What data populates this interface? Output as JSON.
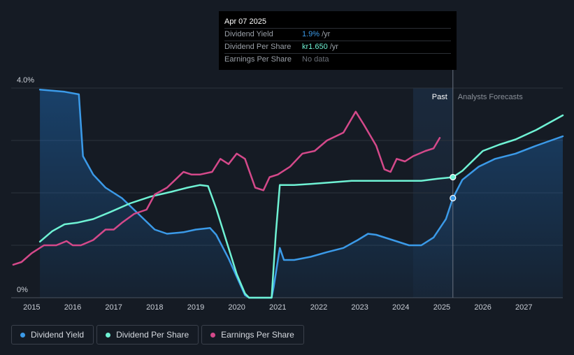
{
  "tooltip": {
    "date": "Apr 07 2025",
    "rows": [
      {
        "label": "Dividend Yield",
        "value": "1.9%",
        "unit": "/yr",
        "color": "#3b9ae8"
      },
      {
        "label": "Dividend Per Share",
        "value": "kr1.650",
        "unit": "/yr",
        "color": "#6ff2d4"
      },
      {
        "label": "Earnings Per Share",
        "value": "No data",
        "unit": "",
        "color": "#6b7078"
      }
    ]
  },
  "regions": {
    "past_label": "Past",
    "forecast_label": "Analysts Forecasts"
  },
  "legend": [
    {
      "label": "Dividend Yield",
      "color": "#3b9ae8"
    },
    {
      "label": "Dividend Per Share",
      "color": "#6ff2d4"
    },
    {
      "label": "Earnings Per Share",
      "color": "#d4498a"
    }
  ],
  "chart_data": {
    "type": "line",
    "y_tick_labels": [
      "4.0%",
      "0%"
    ],
    "ylim": [
      0,
      4.0
    ],
    "xlim": [
      2014.5,
      2027.95
    ],
    "x_ticks": [
      2015,
      2016,
      2017,
      2018,
      2019,
      2020,
      2021,
      2022,
      2023,
      2024,
      2025,
      2026,
      2027
    ],
    "past_cutoff": 2025.27,
    "past_region_start": 2024.3,
    "grid": true,
    "series": [
      {
        "name": "Dividend Yield",
        "color": "#3b9ae8",
        "area": true,
        "points": [
          [
            2015.2,
            3.97
          ],
          [
            2015.8,
            3.93
          ],
          [
            2016.15,
            3.88
          ],
          [
            2016.25,
            2.7
          ],
          [
            2016.5,
            2.35
          ],
          [
            2016.8,
            2.1
          ],
          [
            2017.2,
            1.9
          ],
          [
            2017.6,
            1.6
          ],
          [
            2018.0,
            1.3
          ],
          [
            2018.3,
            1.22
          ],
          [
            2018.7,
            1.25
          ],
          [
            2019.0,
            1.3
          ],
          [
            2019.35,
            1.33
          ],
          [
            2019.5,
            1.2
          ],
          [
            2019.8,
            0.75
          ],
          [
            2020.0,
            0.4
          ],
          [
            2020.2,
            0.05
          ],
          [
            2020.3,
            0.0
          ],
          [
            2020.85,
            0.0
          ],
          [
            2020.9,
            0.2
          ],
          [
            2021.05,
            0.95
          ],
          [
            2021.15,
            0.72
          ],
          [
            2021.4,
            0.72
          ],
          [
            2021.8,
            0.78
          ],
          [
            2022.2,
            0.87
          ],
          [
            2022.6,
            0.95
          ],
          [
            2022.95,
            1.1
          ],
          [
            2023.2,
            1.22
          ],
          [
            2023.4,
            1.2
          ],
          [
            2023.8,
            1.1
          ],
          [
            2024.2,
            1.0
          ],
          [
            2024.5,
            1.0
          ],
          [
            2024.8,
            1.15
          ],
          [
            2025.1,
            1.5
          ],
          [
            2025.27,
            1.9
          ],
          [
            2025.5,
            2.25
          ],
          [
            2025.9,
            2.5
          ],
          [
            2026.3,
            2.65
          ],
          [
            2026.8,
            2.75
          ],
          [
            2027.3,
            2.9
          ],
          [
            2027.95,
            3.08
          ]
        ]
      },
      {
        "name": "Dividend Per Share",
        "color": "#6ff2d4",
        "area": false,
        "points": [
          [
            2015.2,
            1.07
          ],
          [
            2015.5,
            1.27
          ],
          [
            2015.8,
            1.4
          ],
          [
            2016.1,
            1.43
          ],
          [
            2016.5,
            1.5
          ],
          [
            2016.9,
            1.63
          ],
          [
            2017.4,
            1.8
          ],
          [
            2017.9,
            1.93
          ],
          [
            2018.4,
            2.02
          ],
          [
            2018.8,
            2.1
          ],
          [
            2019.1,
            2.15
          ],
          [
            2019.3,
            2.13
          ],
          [
            2019.5,
            1.7
          ],
          [
            2019.8,
            0.95
          ],
          [
            2020.0,
            0.45
          ],
          [
            2020.2,
            0.08
          ],
          [
            2020.3,
            0.0
          ],
          [
            2020.85,
            0.0
          ],
          [
            2020.95,
            1.2
          ],
          [
            2021.05,
            2.15
          ],
          [
            2021.4,
            2.15
          ],
          [
            2021.8,
            2.17
          ],
          [
            2022.3,
            2.2
          ],
          [
            2022.8,
            2.23
          ],
          [
            2023.3,
            2.23
          ],
          [
            2023.8,
            2.23
          ],
          [
            2024.2,
            2.23
          ],
          [
            2024.5,
            2.23
          ],
          [
            2024.9,
            2.27
          ],
          [
            2025.27,
            2.3
          ],
          [
            2025.5,
            2.42
          ],
          [
            2025.8,
            2.65
          ],
          [
            2026.0,
            2.8
          ],
          [
            2026.4,
            2.92
          ],
          [
            2026.8,
            3.02
          ],
          [
            2027.3,
            3.2
          ],
          [
            2027.95,
            3.48
          ]
        ]
      },
      {
        "name": "Earnings Per Share",
        "color": "#d4498a",
        "area": false,
        "points": [
          [
            2014.55,
            0.63
          ],
          [
            2014.75,
            0.68
          ],
          [
            2015.0,
            0.85
          ],
          [
            2015.3,
            1.0
          ],
          [
            2015.6,
            1.0
          ],
          [
            2015.85,
            1.08
          ],
          [
            2016.0,
            1.0
          ],
          [
            2016.2,
            1.0
          ],
          [
            2016.5,
            1.1
          ],
          [
            2016.8,
            1.3
          ],
          [
            2017.0,
            1.3
          ],
          [
            2017.2,
            1.43
          ],
          [
            2017.5,
            1.6
          ],
          [
            2017.8,
            1.68
          ],
          [
            2018.0,
            1.97
          ],
          [
            2018.3,
            2.1
          ],
          [
            2018.7,
            2.4
          ],
          [
            2018.9,
            2.35
          ],
          [
            2019.1,
            2.35
          ],
          [
            2019.4,
            2.4
          ],
          [
            2019.6,
            2.65
          ],
          [
            2019.8,
            2.55
          ],
          [
            2020.0,
            2.75
          ],
          [
            2020.2,
            2.65
          ],
          [
            2020.45,
            2.1
          ],
          [
            2020.65,
            2.05
          ],
          [
            2020.8,
            2.3
          ],
          [
            2021.0,
            2.35
          ],
          [
            2021.3,
            2.5
          ],
          [
            2021.6,
            2.75
          ],
          [
            2021.9,
            2.8
          ],
          [
            2022.2,
            3.0
          ],
          [
            2022.6,
            3.15
          ],
          [
            2022.9,
            3.55
          ],
          [
            2023.1,
            3.3
          ],
          [
            2023.4,
            2.9
          ],
          [
            2023.6,
            2.45
          ],
          [
            2023.75,
            2.4
          ],
          [
            2023.9,
            2.65
          ],
          [
            2024.1,
            2.6
          ],
          [
            2024.3,
            2.7
          ],
          [
            2024.6,
            2.8
          ],
          [
            2024.8,
            2.85
          ],
          [
            2024.95,
            3.05
          ]
        ]
      }
    ],
    "markers": [
      {
        "series": "Dividend Per Share",
        "x": 2025.27,
        "y": 2.3
      },
      {
        "series": "Dividend Yield",
        "x": 2025.27,
        "y": 1.9
      }
    ]
  }
}
